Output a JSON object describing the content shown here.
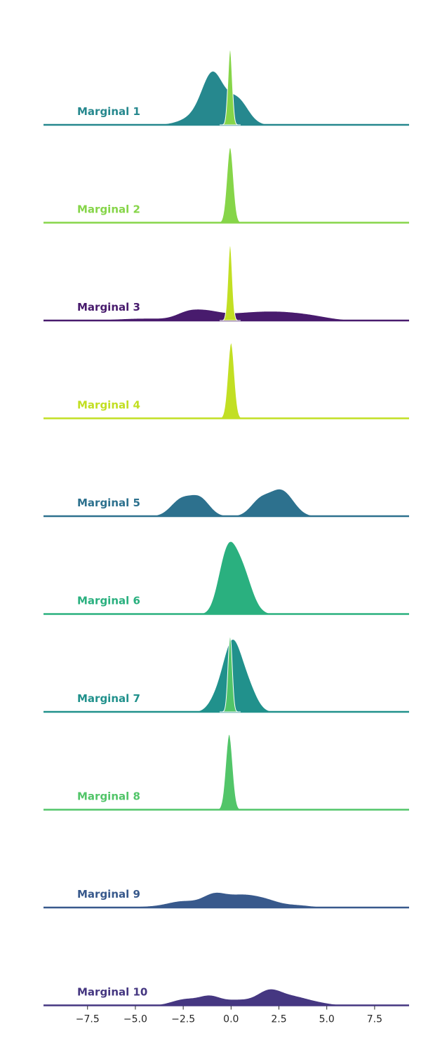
{
  "chart_data": {
    "type": "area",
    "subtype": "ridgeline-kde",
    "title": "",
    "xlabel": "",
    "ylabel": "",
    "xlim": [
      -9.8,
      9.3
    ],
    "xticks": [
      -7.5,
      -5.0,
      -2.5,
      0.0,
      2.5,
      5.0,
      7.5
    ],
    "xtick_labels": [
      "−7.5",
      "−5.0",
      "−2.5",
      "0.0",
      "2.5",
      "5.0",
      "7.5"
    ],
    "grid": false,
    "legend": "none",
    "series": [
      {
        "name": "Marginal 1",
        "color": "#26888e",
        "kind": "mixture",
        "components": [
          {
            "mu": -0.95,
            "sigma": 0.55,
            "w": 0.62
          },
          {
            "mu": 0.35,
            "sigma": 0.55,
            "w": 0.35
          },
          {
            "mu": -1.5,
            "sigma": 0.9,
            "w": 0.15
          }
        ],
        "peak_height": 0.85,
        "spike": {
          "mu": -0.05,
          "sigma": 0.11,
          "height": 1.2
        }
      },
      {
        "name": "Marginal 2",
        "color": "#86d549",
        "kind": "mixture",
        "components": [
          {
            "mu": -0.05,
            "sigma": 0.17,
            "w": 1.0
          }
        ],
        "peak_height": 1.2
      },
      {
        "name": "Marginal 3",
        "color": "#481b6d",
        "kind": "mixture",
        "components": [
          {
            "mu": -2.3,
            "sigma": 0.6,
            "w": 0.28
          },
          {
            "mu": -1.3,
            "sigma": 0.7,
            "w": 0.3
          },
          {
            "mu": 0.5,
            "sigma": 1.3,
            "w": 0.28
          },
          {
            "mu": 2.6,
            "sigma": 1.2,
            "w": 0.3
          },
          {
            "mu": -4.5,
            "sigma": 1.5,
            "w": 0.1
          },
          {
            "mu": 4.3,
            "sigma": 1.0,
            "w": 0.14
          }
        ],
        "peak_height": 0.18,
        "spike": {
          "mu": -0.05,
          "sigma": 0.11,
          "height": 1.2
        }
      },
      {
        "name": "Marginal 4",
        "color": "#c2df23",
        "kind": "mixture",
        "components": [
          {
            "mu": 0.0,
            "sigma": 0.17,
            "w": 1.0
          }
        ],
        "peak_height": 1.2
      },
      {
        "name": "Marginal 5",
        "color": "#2d718e",
        "kind": "mixture",
        "components": [
          {
            "mu": -2.6,
            "sigma": 0.55,
            "w": 0.55
          },
          {
            "mu": -1.6,
            "sigma": 0.5,
            "w": 0.55
          },
          {
            "mu": 1.5,
            "sigma": 0.5,
            "w": 0.5
          },
          {
            "mu": 2.5,
            "sigma": 0.55,
            "w": 0.7
          },
          {
            "mu": 3.1,
            "sigma": 0.5,
            "w": 0.25
          }
        ],
        "peak_height": 0.43
      },
      {
        "name": "Marginal 6",
        "color": "#2ab07f",
        "kind": "mixture",
        "components": [
          {
            "mu": -0.15,
            "sigma": 0.4,
            "w": 0.7
          },
          {
            "mu": 0.45,
            "sigma": 0.45,
            "w": 0.5
          },
          {
            "mu": -0.6,
            "sigma": 0.35,
            "w": 0.2
          },
          {
            "mu": 0.9,
            "sigma": 0.45,
            "w": 0.2
          }
        ],
        "peak_height": 1.15
      },
      {
        "name": "Marginal 7",
        "color": "#21918c",
        "kind": "mixture",
        "components": [
          {
            "mu": -0.05,
            "sigma": 0.45,
            "w": 0.7
          },
          {
            "mu": 0.5,
            "sigma": 0.5,
            "w": 0.45
          },
          {
            "mu": -0.8,
            "sigma": 0.4,
            "w": 0.15
          },
          {
            "mu": 1.1,
            "sigma": 0.4,
            "w": 0.12
          }
        ],
        "peak_height": 1.15,
        "spike": {
          "mu": -0.05,
          "sigma": 0.11,
          "height": 1.2
        }
      },
      {
        "name": "Marginal 8",
        "color": "#52c569",
        "kind": "mixture",
        "components": [
          {
            "mu": -0.1,
            "sigma": 0.18,
            "w": 1.0
          }
        ],
        "peak_height": 1.2
      },
      {
        "name": "Marginal 9",
        "color": "#38598c",
        "kind": "mixture",
        "components": [
          {
            "mu": -2.5,
            "sigma": 0.8,
            "w": 0.3
          },
          {
            "mu": -0.9,
            "sigma": 0.6,
            "w": 0.55
          },
          {
            "mu": 0.5,
            "sigma": 0.8,
            "w": 0.55
          },
          {
            "mu": 1.8,
            "sigma": 0.7,
            "w": 0.3
          },
          {
            "mu": 3.4,
            "sigma": 0.8,
            "w": 0.12
          },
          {
            "mu": -4.3,
            "sigma": 1.0,
            "w": 0.05
          }
        ],
        "peak_height": 0.24
      },
      {
        "name": "Marginal 10",
        "color": "#453781",
        "kind": "mixture",
        "components": [
          {
            "mu": -2.4,
            "sigma": 0.7,
            "w": 0.3
          },
          {
            "mu": -1.1,
            "sigma": 0.55,
            "w": 0.4
          },
          {
            "mu": 0.3,
            "sigma": 0.7,
            "w": 0.25
          },
          {
            "mu": 2.0,
            "sigma": 0.65,
            "w": 0.7
          },
          {
            "mu": 3.3,
            "sigma": 0.7,
            "w": 0.35
          },
          {
            "mu": 4.5,
            "sigma": 0.7,
            "w": 0.12
          }
        ],
        "peak_height": 0.26
      }
    ]
  }
}
